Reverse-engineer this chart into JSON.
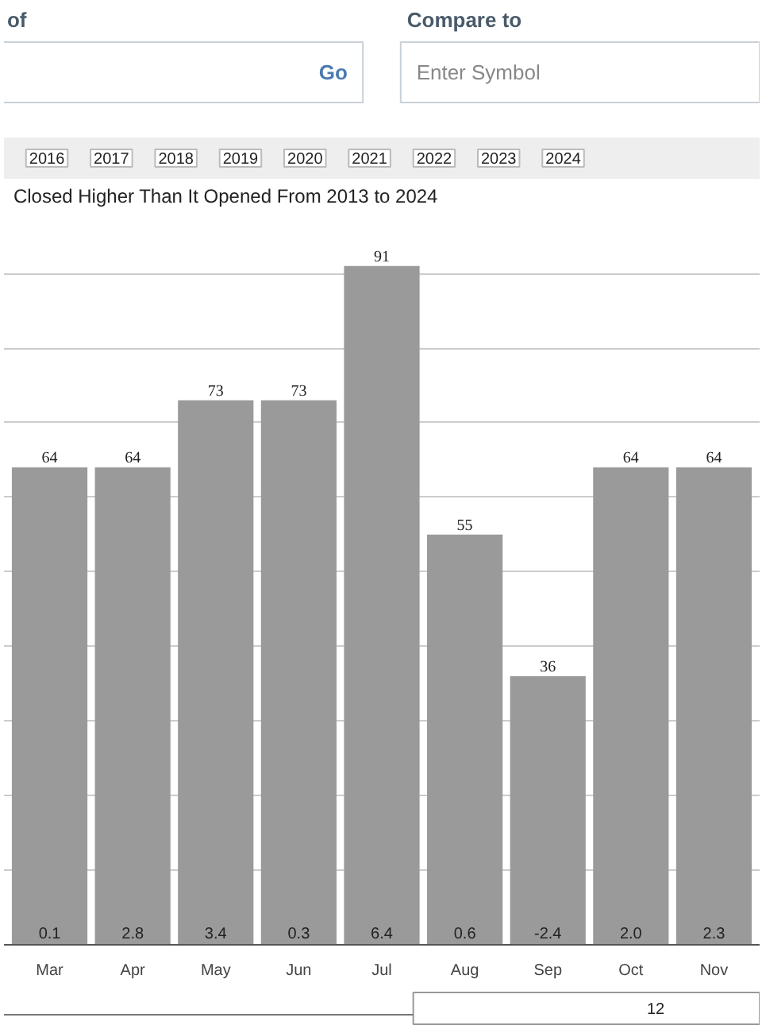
{
  "chart_data": {
    "type": "bar",
    "title": "Closed Higher Than It Opened From 2013 to 2024",
    "categories": [
      "Mar",
      "Apr",
      "May",
      "Jun",
      "Jul",
      "Aug",
      "Sep",
      "Oct",
      "Nov"
    ],
    "values": [
      64,
      64,
      73,
      73,
      91,
      55,
      36,
      64,
      64
    ],
    "color": "#9a9a9a",
    "data_labels": true,
    "tick_labels": "x",
    "grid": "y",
    "annotations": [
      {
        "text": "0.1",
        "x": "Mar",
        "y": 0
      },
      {
        "text": "2.8",
        "x": "Apr",
        "y": 0
      },
      {
        "text": "3.4",
        "x": "May",
        "y": 0
      },
      {
        "text": "0.3",
        "x": "Jun",
        "y": 0
      },
      {
        "text": "6.4",
        "x": "Jul",
        "y": 0
      },
      {
        "text": "0.6",
        "x": "Aug",
        "y": 0
      },
      {
        "text": "-2.4",
        "x": "Sep",
        "y": 0
      },
      {
        "text": "2.0",
        "x": "Oct",
        "y": 0
      },
      {
        "text": "2.3",
        "x": "Nov",
        "y": 0
      },
      "of",
      "Compare to",
      "Go",
      "Enter Symbol",
      "2016",
      "2017",
      "2018",
      "2019",
      "2020",
      "2021",
      "2022",
      "2023",
      "2024",
      "12"
    ]
  }
}
